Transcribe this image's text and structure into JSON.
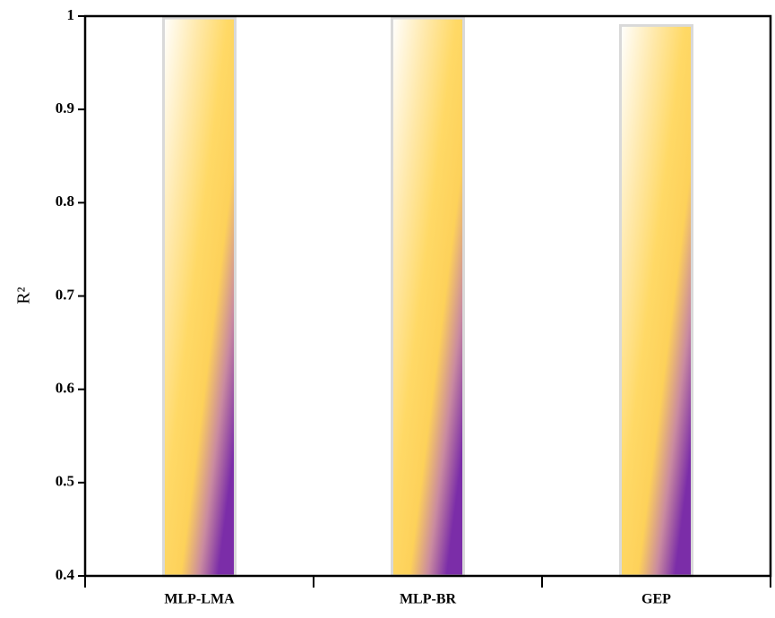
{
  "chart_data": {
    "type": "bar",
    "y_label": "R²",
    "categories": [
      "MLP-LMA",
      "MLP-BR",
      "GEP"
    ],
    "values": [
      0.998,
      0.998,
      0.99
    ],
    "ylim": [
      0.4,
      1
    ],
    "yticks": [
      0.4,
      0.5,
      0.6,
      0.7,
      0.8,
      0.9,
      1
    ],
    "grid": false
  }
}
